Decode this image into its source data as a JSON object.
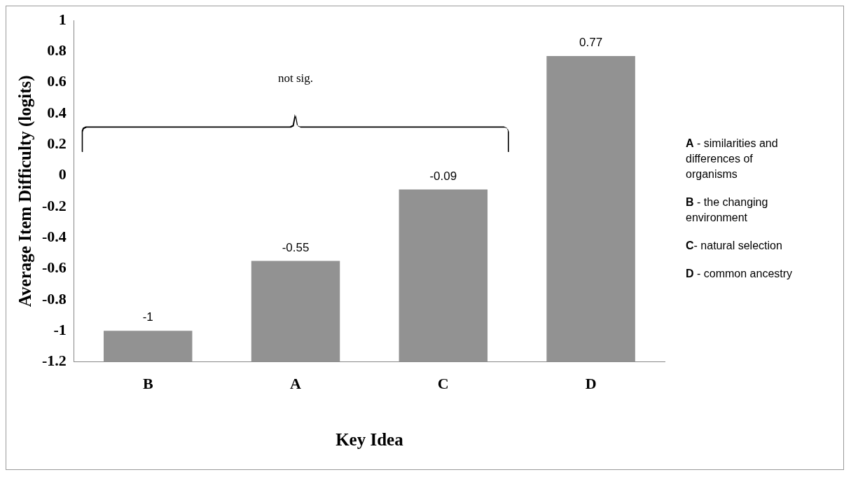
{
  "chart_data": {
    "type": "bar",
    "xlabel": "Key Idea",
    "ylabel": "Average Item Difficulty (logits)",
    "categories": [
      "B",
      "A",
      "C",
      "D"
    ],
    "base": [
      -1.2,
      -1.2,
      -1.2,
      -1.2
    ],
    "values": [
      0.2,
      0.65,
      1.11,
      1.97
    ],
    "value_labels": [
      "-1",
      "-0.55",
      "-0.09",
      "0.77"
    ],
    "color": "#929292",
    "ylim": [
      -1.2,
      1
    ],
    "yticks": [
      -1.2,
      -1,
      -0.8,
      -0.6,
      -0.4,
      -0.2,
      0,
      0.2,
      0.4,
      0.6,
      0.8,
      1
    ],
    "grid": false,
    "legend": false,
    "annotations": [
      "not sig.",
      "A - similarities and differences of organisms",
      "B - the changing environment",
      "C- natural selection",
      "D - common ancestry"
    ]
  }
}
